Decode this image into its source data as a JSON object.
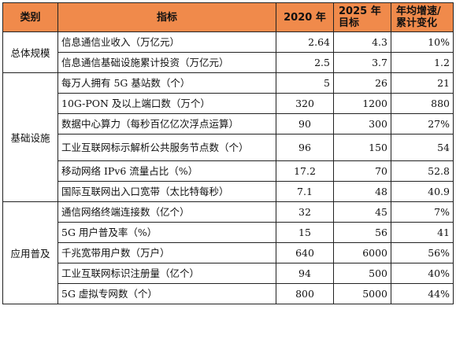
{
  "header": {
    "category": "类别",
    "indicator": "指标",
    "year2020": "2020 年",
    "target2025": "2025 年目标",
    "avg_growth": "年均增速/累计变化"
  },
  "groups": [
    {
      "category": "总体规模",
      "rows": [
        {
          "indicator": "信息通信业收入（万亿元）",
          "v2020": "2.64",
          "v2025": "4.3",
          "change": "10%"
        },
        {
          "indicator": "信息通信基础设施累计投资（万亿元）",
          "v2020": "2.5",
          "v2025": "3.7",
          "change": "1.2"
        }
      ]
    },
    {
      "category": "基础设施",
      "rows": [
        {
          "indicator": "每万人拥有 5G 基站数（个）",
          "v2020": "5",
          "v2025": "26",
          "change": "21"
        },
        {
          "indicator": "10G-PON 及以上端口数（万个）",
          "v2020": "320",
          "v2025": "1200",
          "change": "880"
        },
        {
          "indicator": "数据中心算力（每秒百亿亿次浮点运算）",
          "v2020": "90",
          "v2025": "300",
          "change": "27%"
        },
        {
          "indicator": "工业互联网标示解析公共服务节点数（个）",
          "v2020": "96",
          "v2025": "150",
          "change": "54"
        },
        {
          "indicator": "移动网络 IPv6 流量占比（%）",
          "v2020": "17.2",
          "v2025": "70",
          "change": "52.8"
        },
        {
          "indicator": "国际互联网出入口宽带（太比特每秒）",
          "v2020": "7.1",
          "v2025": "48",
          "change": "40.9"
        }
      ]
    },
    {
      "category": "应用普及",
      "rows": [
        {
          "indicator": "通信网络终端连接数（亿个）",
          "v2020": "32",
          "v2025": "45",
          "change": "7%"
        },
        {
          "indicator": "5G 用户普及率（%）",
          "v2020": "15",
          "v2025": "56",
          "change": "41"
        },
        {
          "indicator": "千兆宽带用户数（万户）",
          "v2020": "640",
          "v2025": "6000",
          "change": "56%"
        },
        {
          "indicator": "工业互联网标识注册量（亿个）",
          "v2020": "94",
          "v2025": "500",
          "change": "40%"
        },
        {
          "indicator": "5G 虚拟专网数（个）",
          "v2020": "800",
          "v2025": "5000",
          "change": "44%"
        }
      ]
    }
  ],
  "colors": {
    "header_bg": "#f08a4b",
    "border": "#222222"
  }
}
